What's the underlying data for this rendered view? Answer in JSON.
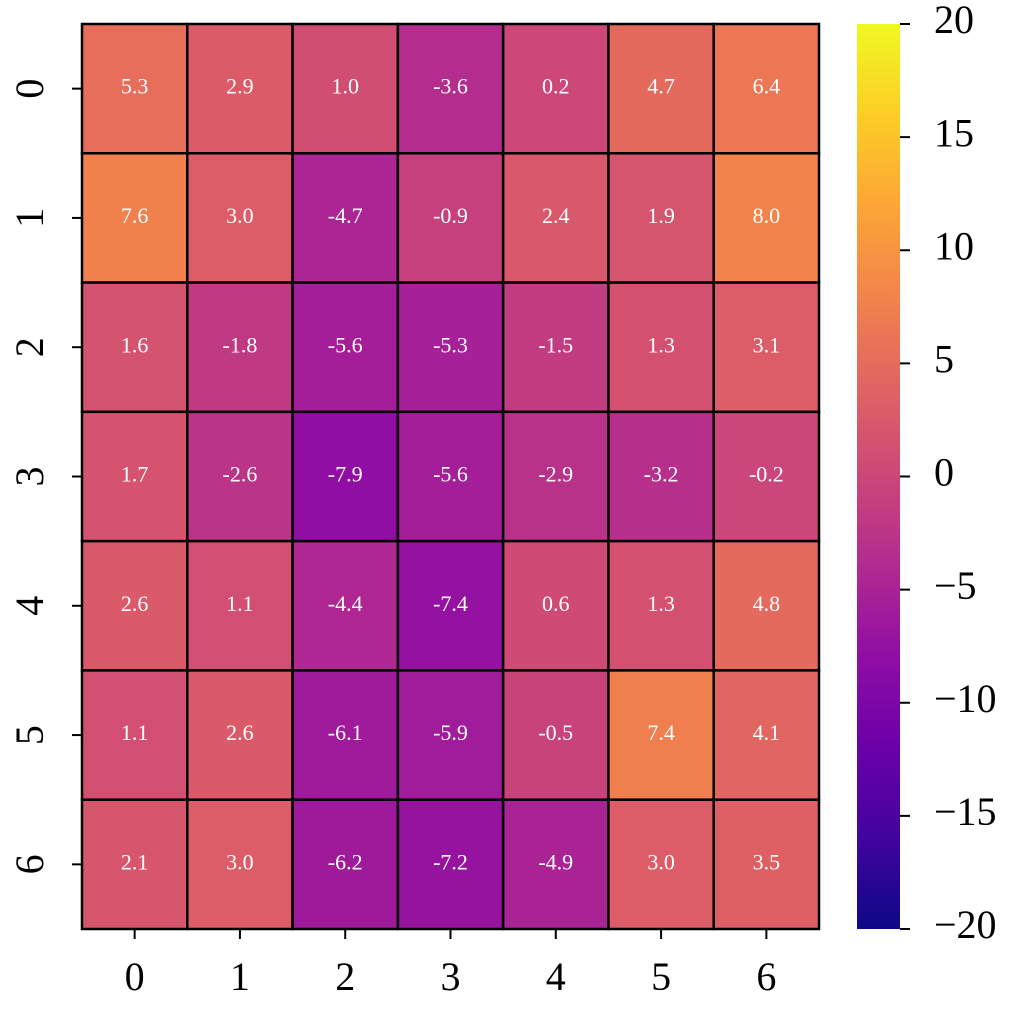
{
  "chart_data": {
    "type": "heatmap",
    "x": [
      "0",
      "1",
      "2",
      "3",
      "4",
      "5",
      "6"
    ],
    "y": [
      "0",
      "1",
      "2",
      "3",
      "4",
      "5",
      "6"
    ],
    "values": [
      [
        5.3,
        2.9,
        1.0,
        -3.6,
        0.2,
        4.7,
        6.4
      ],
      [
        7.6,
        3.0,
        -4.7,
        -0.9,
        2.4,
        1.9,
        8.0
      ],
      [
        1.6,
        -1.8,
        -5.6,
        -5.3,
        -1.5,
        1.3,
        3.1
      ],
      [
        1.7,
        -2.6,
        -7.9,
        -5.6,
        -2.9,
        -3.2,
        -0.2
      ],
      [
        2.6,
        1.1,
        -4.4,
        -7.4,
        0.6,
        1.3,
        4.8
      ],
      [
        1.1,
        2.6,
        -6.1,
        -5.9,
        -0.5,
        7.4,
        4.1
      ],
      [
        2.1,
        3.0,
        -6.2,
        -7.2,
        -4.9,
        3.0,
        3.5
      ]
    ],
    "value_labels": [
      [
        "5.3",
        "2.9",
        "1.0",
        "-3.6",
        "0.2",
        "4.7",
        "6.4"
      ],
      [
        "7.6",
        "3.0",
        "-4.7",
        "-0.9",
        "2.4",
        "1.9",
        "8.0"
      ],
      [
        "1.6",
        "-1.8",
        "-5.6",
        "-5.3",
        "-1.5",
        "1.3",
        "3.1"
      ],
      [
        "1.7",
        "-2.6",
        "-7.9",
        "-5.6",
        "-2.9",
        "-3.2",
        "-0.2"
      ],
      [
        "2.6",
        "1.1",
        "-4.4",
        "-7.4",
        "0.6",
        "1.3",
        "4.8"
      ],
      [
        "1.1",
        "2.6",
        "-6.1",
        "-5.9",
        "-0.5",
        "7.4",
        "4.1"
      ],
      [
        "2.1",
        "3.0",
        "-6.2",
        "-7.2",
        "-4.9",
        "3.0",
        "3.5"
      ]
    ],
    "colormap": "plasma",
    "clim": [
      -20,
      20
    ],
    "cticks": [
      {
        "value": -20,
        "label": "−20"
      },
      {
        "value": -15,
        "label": "−15"
      },
      {
        "value": -10,
        "label": "−10"
      },
      {
        "value": -5,
        "label": "−5"
      },
      0,
      5,
      10,
      15,
      20
    ]
  }
}
